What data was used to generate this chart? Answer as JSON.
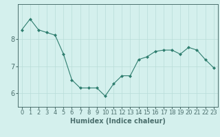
{
  "x": [
    0,
    1,
    2,
    3,
    4,
    5,
    6,
    7,
    8,
    9,
    10,
    11,
    12,
    13,
    14,
    15,
    16,
    17,
    18,
    19,
    20,
    21,
    22,
    23
  ],
  "y": [
    8.35,
    8.75,
    8.35,
    8.25,
    8.15,
    7.45,
    6.5,
    6.2,
    6.2,
    6.2,
    5.9,
    6.35,
    6.65,
    6.65,
    7.25,
    7.35,
    7.55,
    7.6,
    7.6,
    7.45,
    7.7,
    7.6,
    7.25,
    6.95
  ],
  "line_color": "#2e7d6e",
  "marker_color": "#2e7d6e",
  "bg_color": "#d4f0ed",
  "grid_color": "#b8dcd8",
  "axis_color": "#4a6e6c",
  "xlabel": "Humidex (Indice chaleur)",
  "ylim_min": 5.5,
  "ylim_max": 9.3,
  "xlim_min": -0.5,
  "xlim_max": 23.5,
  "yticks": [
    6,
    7,
    8
  ],
  "xticks": [
    0,
    1,
    2,
    3,
    4,
    5,
    6,
    7,
    8,
    9,
    10,
    11,
    12,
    13,
    14,
    15,
    16,
    17,
    18,
    19,
    20,
    21,
    22,
    23
  ],
  "font_size": 6,
  "xlabel_fontsize": 7
}
